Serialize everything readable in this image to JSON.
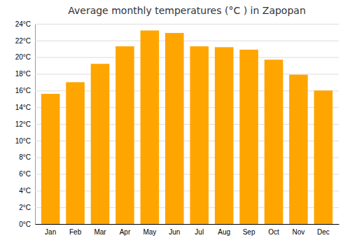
{
  "chart_data": {
    "type": "bar",
    "title": "Average monthly temperatures (°C ) in Zapopan",
    "categories": [
      "Jan",
      "Feb",
      "Mar",
      "Apr",
      "May",
      "Jun",
      "Jul",
      "Aug",
      "Sep",
      "Oct",
      "Nov",
      "Dec"
    ],
    "values": [
      15.6,
      17.0,
      19.2,
      21.3,
      23.2,
      22.9,
      21.3,
      21.2,
      20.9,
      19.7,
      17.9,
      16.0
    ],
    "color": "#FFA500",
    "ylim": [
      0,
      24
    ],
    "yticks": [
      {
        "value": 0,
        "label": "0°C"
      },
      {
        "value": 2,
        "label": "2°C"
      },
      {
        "value": 4,
        "label": "4°C"
      },
      {
        "value": 6,
        "label": "6°C"
      },
      {
        "value": 8,
        "label": "8°C"
      },
      {
        "value": 10,
        "label": "10°C"
      },
      {
        "value": 12,
        "label": "12°C"
      },
      {
        "value": 14,
        "label": "14°C"
      },
      {
        "value": 16,
        "label": "16°C"
      },
      {
        "value": 18,
        "label": "18°C"
      },
      {
        "value": 20,
        "label": "20°C"
      },
      {
        "value": 22,
        "label": "22°C"
      },
      {
        "value": 24,
        "label": "24°C"
      }
    ],
    "grid": true
  }
}
